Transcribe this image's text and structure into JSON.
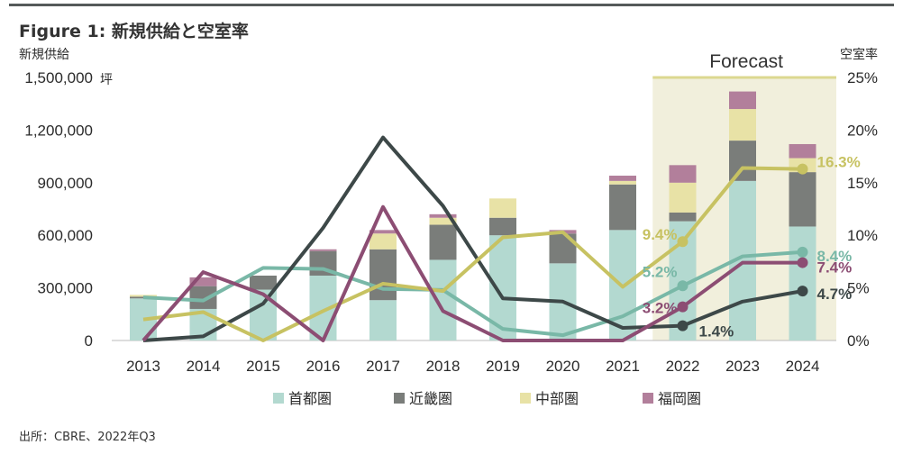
{
  "title": "Figure 1: 新規供給と空室率",
  "source": "出所：CBRE、2022年Q3",
  "chart_data": {
    "type": "bar+line",
    "left_axis_title": "新規供給",
    "left_axis_unit": "坪",
    "right_axis_title": "空室率",
    "left_ylim": [
      0,
      1500000
    ],
    "right_ylim": [
      0,
      25
    ],
    "left_ticks": [
      "0",
      "300,000",
      "600,000",
      "900,000",
      "1,200,000",
      "1,500,000"
    ],
    "right_ticks": [
      "0%",
      "5%",
      "10%",
      "15%",
      "20%",
      "25%"
    ],
    "categories": [
      "2013",
      "2014",
      "2015",
      "2016",
      "2017",
      "2018",
      "2019",
      "2020",
      "2021",
      "2022",
      "2023",
      "2024"
    ],
    "forecast_label": "Forecast",
    "forecast_from": "2022",
    "bar_series": [
      {
        "name": "首都圏",
        "color": "#b3d9d0",
        "values": [
          240000,
          180000,
          290000,
          370000,
          230000,
          460000,
          600000,
          440000,
          630000,
          680000,
          910000,
          650000
        ]
      },
      {
        "name": "近畿圏",
        "color": "#7a7d7a",
        "values": [
          10000,
          130000,
          80000,
          140000,
          290000,
          200000,
          100000,
          170000,
          260000,
          50000,
          230000,
          310000
        ]
      },
      {
        "name": "中部圏",
        "color": "#e8e2a6",
        "values": [
          10000,
          0,
          0,
          0,
          90000,
          40000,
          110000,
          0,
          20000,
          170000,
          180000,
          80000
        ]
      },
      {
        "name": "福岡圏",
        "color": "#b27f9b",
        "values": [
          0,
          50000,
          0,
          10000,
          20000,
          20000,
          0,
          20000,
          30000,
          100000,
          100000,
          80000
        ]
      }
    ],
    "line_series": [
      {
        "name": "首都圏",
        "color": "#79b8a7",
        "values": [
          4.1,
          3.8,
          6.9,
          6.8,
          4.9,
          4.8,
          1.1,
          0.5,
          2.3,
          5.2,
          8.0,
          8.4
        ],
        "end_label": "8.4%",
        "point_label": "5.2%"
      },
      {
        "name": "近畿圏",
        "color": "#3d4848",
        "values": [
          0,
          0.4,
          3.5,
          10.7,
          19.3,
          12.8,
          4.0,
          3.7,
          1.2,
          1.4,
          3.7,
          4.7
        ],
        "end_label": "4.7%",
        "point_label": "1.4%"
      },
      {
        "name": "中部圏",
        "color": "#c7c262",
        "values": [
          2.0,
          2.7,
          0,
          2.8,
          5.4,
          4.7,
          9.8,
          10.3,
          5.1,
          9.4,
          16.4,
          16.3
        ],
        "end_label": "16.3%",
        "point_label": "9.4%"
      },
      {
        "name": "福岡圏",
        "color": "#8c4d73",
        "values": [
          0,
          6.5,
          4.4,
          0,
          12.7,
          2.8,
          0,
          0,
          0,
          3.2,
          7.4,
          7.4
        ],
        "end_label": "7.4%",
        "point_label": "3.2%"
      }
    ]
  }
}
